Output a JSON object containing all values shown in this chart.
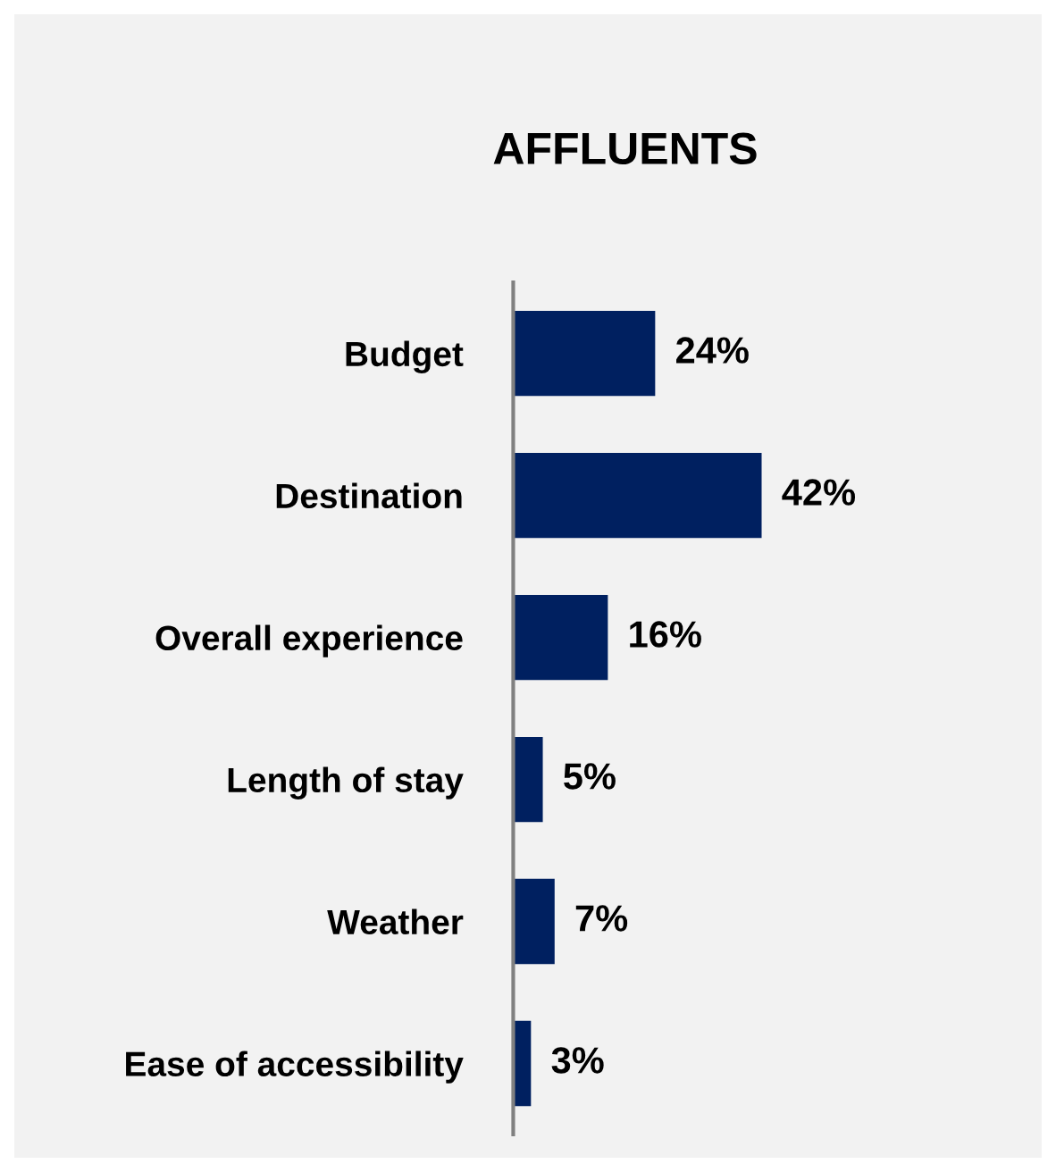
{
  "chart_data": {
    "type": "bar",
    "orientation": "horizontal",
    "title": "AFFLUENTS",
    "categories": [
      "Budget",
      "Destination",
      "Overall experience",
      "Length of stay",
      "Weather",
      "Ease of accessibility"
    ],
    "values": [
      24,
      42,
      16,
      5,
      7,
      3
    ],
    "value_labels": [
      "24%",
      "42%",
      "16%",
      "5%",
      "7%",
      "3%"
    ],
    "color": "#002060",
    "grid": false,
    "legend": false,
    "tick_labels": "y"
  }
}
